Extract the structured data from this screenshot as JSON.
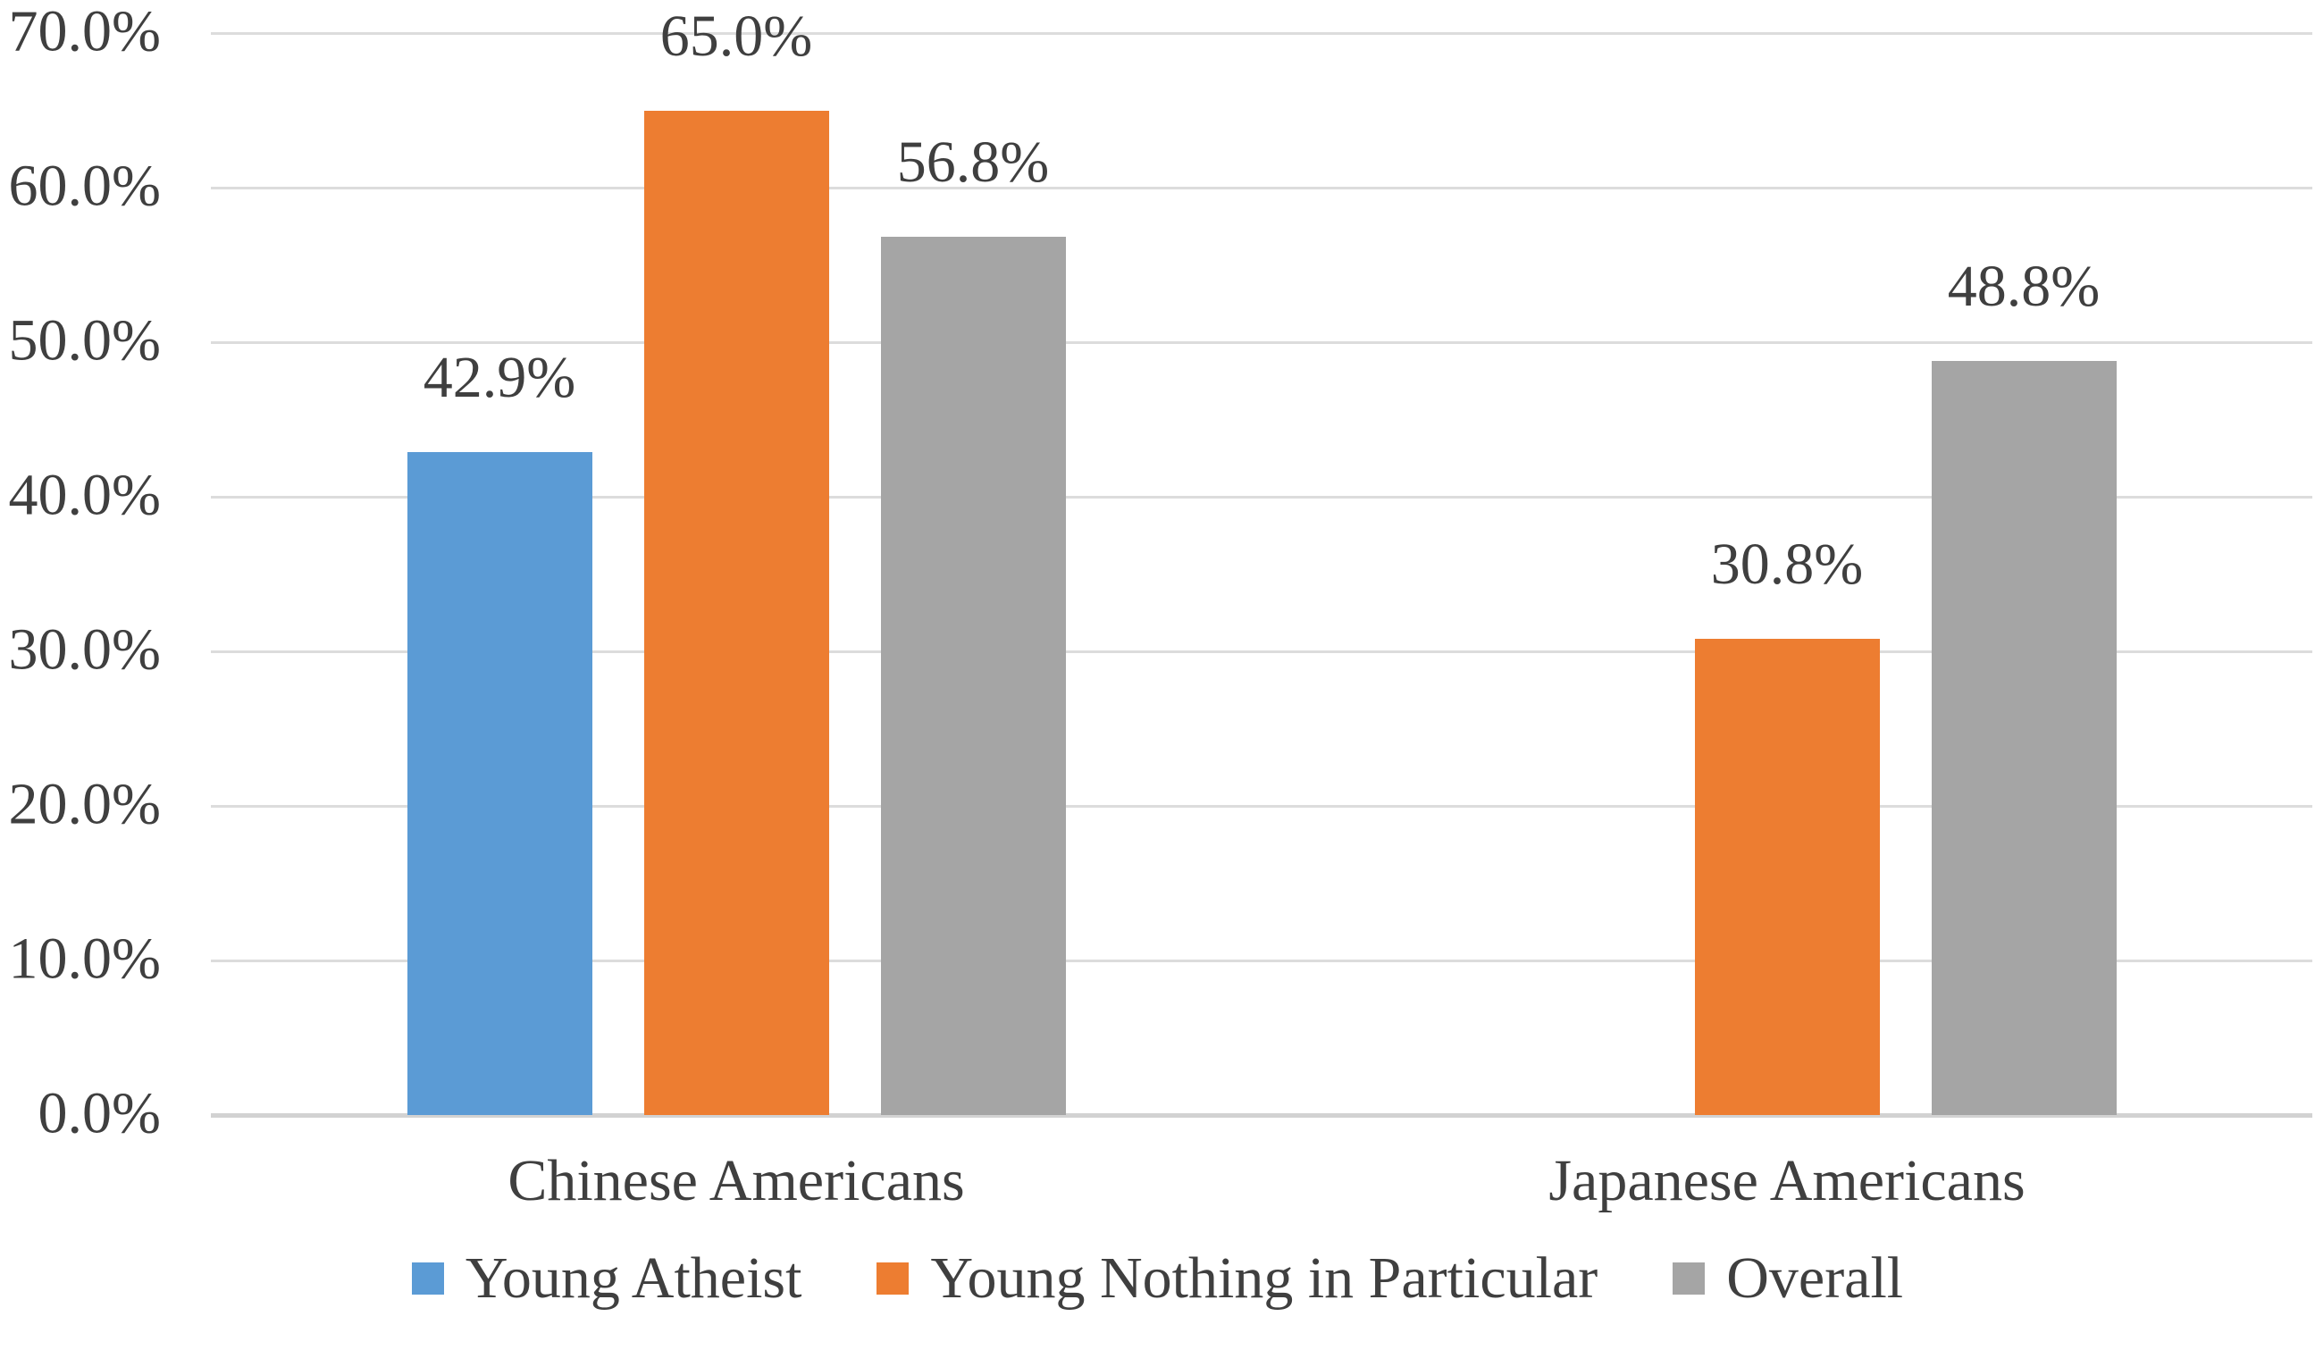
{
  "chart_data": {
    "type": "bar",
    "title": "",
    "xlabel": "",
    "ylabel": "",
    "grid": true,
    "legend_position": "bottom",
    "categories": [
      "Chinese Americans",
      "Japanese Americans"
    ],
    "series": [
      {
        "name": "Young Atheist",
        "color": "#5B9BD5",
        "values": [
          42.9,
          null
        ],
        "labels": [
          "42.9%",
          null
        ]
      },
      {
        "name": "Young Nothing in Particular",
        "color": "#ED7D31",
        "values": [
          65.0,
          30.8
        ],
        "labels": [
          "65.0%",
          "30.8%"
        ]
      },
      {
        "name": "Overall",
        "color": "#A5A5A5",
        "values": [
          56.8,
          48.8
        ],
        "labels": [
          "56.8%",
          "48.8%"
        ]
      }
    ],
    "y_axis": {
      "min": 0,
      "max": 70,
      "step": 10,
      "tick_labels": [
        "0.0%",
        "10.0%",
        "20.0%",
        "30.0%",
        "40.0%",
        "50.0%",
        "60.0%",
        "70.0%"
      ]
    },
    "colors": {
      "gridline": "#DCDCDC",
      "axis_line": "#D2D2D2",
      "text": "#3F3F3F",
      "background": "#FFFFFF"
    }
  }
}
